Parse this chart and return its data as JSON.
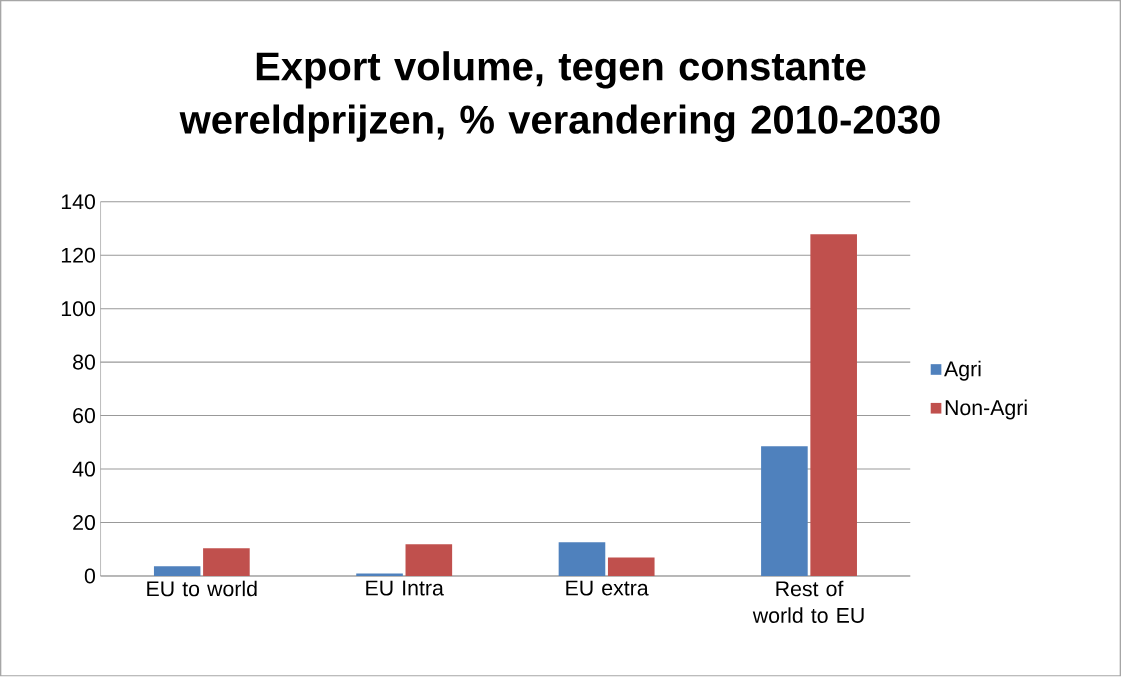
{
  "chart_data": {
    "type": "bar",
    "title": "Export volume, tegen constante wereldprijzen, % verandering 2010-2030",
    "categories": [
      "EU to world",
      "EU Intra",
      "EU extra",
      "Rest of world to EU"
    ],
    "series": [
      {
        "name": "Agri",
        "color": "#4f81bd",
        "values": [
          3.6,
          0.9,
          12.6,
          48.5
        ]
      },
      {
        "name": "Non-Agri",
        "color": "#c0504d",
        "values": [
          10.4,
          11.9,
          6.9,
          127.8
        ]
      }
    ],
    "ylim": [
      0,
      140
    ],
    "yticks": [
      0,
      20,
      40,
      60,
      80,
      100,
      120,
      140
    ],
    "grid": "y",
    "legend": "right"
  }
}
